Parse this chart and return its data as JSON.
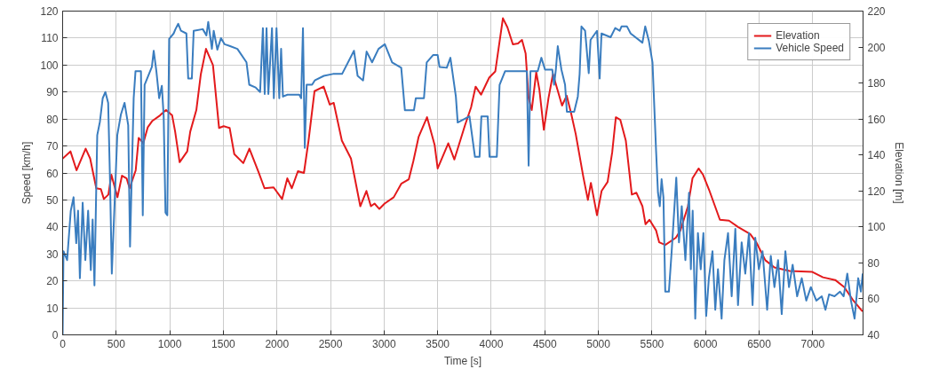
{
  "chart_data": {
    "type": "line",
    "xlabel": "Time [s]",
    "ylabel": "Speed [km/h]",
    "y2label": "Elevation [m]",
    "xlim": [
      0,
      7470
    ],
    "xticks": [
      0,
      500,
      1000,
      1500,
      2000,
      2500,
      3000,
      3500,
      4000,
      4500,
      5000,
      5500,
      6000,
      6500,
      7000
    ],
    "ylim": [
      0,
      120
    ],
    "yticks": [
      0,
      10,
      20,
      30,
      40,
      50,
      60,
      70,
      80,
      90,
      100,
      110,
      120
    ],
    "y2lim": [
      40,
      220
    ],
    "y2ticks": [
      40,
      60,
      80,
      100,
      120,
      140,
      160,
      180,
      200,
      220
    ],
    "grid": true,
    "legend": "top right",
    "line_style": "solid",
    "marker": "none",
    "series": [
      {
        "name": "Elevation",
        "color": "#e31a1c",
        "axis": "y2",
        "x": [
          0,
          73,
          130,
          215,
          257,
          314,
          357,
          385,
          427,
          455,
          512,
          554,
          597,
          625,
          682,
          710,
          753,
          795,
          838,
          909,
          965,
          1022,
          1050,
          1092,
          1163,
          1191,
          1248,
          1290,
          1338,
          1403,
          1460,
          1503,
          1559,
          1602,
          1686,
          1743,
          1828,
          1884,
          1969,
          2048,
          2097,
          2139,
          2196,
          2252,
          2295,
          2351,
          2436,
          2493,
          2530,
          2606,
          2691,
          2778,
          2835,
          2877,
          2911,
          2956,
          3005,
          3090,
          3160,
          3231,
          3273,
          3322,
          3401,
          3472,
          3500,
          3557,
          3599,
          3656,
          3755,
          3812,
          3854,
          3905,
          3981,
          4038,
          4109,
          4151,
          4202,
          4250,
          4287,
          4321,
          4349,
          4378,
          4420,
          4449,
          4491,
          4534,
          4576,
          4610,
          4661,
          4704,
          4746,
          4789,
          4859,
          4902,
          4930,
          4987,
          5030,
          5086,
          5129,
          5163,
          5205,
          5256,
          5312,
          5355,
          5411,
          5440,
          5477,
          5539,
          5567,
          5624,
          5723,
          5765,
          5836,
          5878,
          5935,
          5977,
          6034,
          6134,
          6219,
          6303,
          6417,
          6473,
          6558,
          6643,
          6785,
          6997,
          7096,
          7210,
          7295,
          7380,
          7465
        ],
        "values": [
          138,
          142,
          131.5,
          143.5,
          138,
          121.5,
          121,
          115.5,
          118,
          129,
          116.5,
          128.5,
          127,
          121.5,
          131.5,
          149.5,
          146.5,
          155.5,
          159,
          162,
          165,
          162,
          153,
          136,
          142,
          153,
          165,
          185,
          199,
          190,
          155,
          156,
          155,
          140.5,
          135.5,
          143.5,
          130.5,
          121.5,
          122,
          115.5,
          127,
          121.5,
          131,
          130,
          148,
          175.5,
          178,
          168,
          169,
          148,
          138,
          111.5,
          120,
          111.5,
          113,
          110,
          113,
          116.5,
          124,
          126.5,
          136.5,
          150,
          161,
          145.5,
          132.5,
          140.5,
          146.5,
          137.5,
          156.5,
          166.5,
          178,
          173.5,
          183,
          186.5,
          216,
          211,
          201.5,
          202,
          204,
          196.5,
          171.5,
          165,
          186,
          176.5,
          154,
          171.5,
          185,
          178,
          167.5,
          173,
          163,
          151.5,
          128,
          115,
          124.5,
          106.5,
          120,
          125,
          141.5,
          161,
          159.5,
          148,
          118,
          119,
          111.5,
          101.5,
          104,
          98,
          91.5,
          90,
          94,
          98,
          111.5,
          127,
          132.5,
          129,
          120.5,
          104,
          103.5,
          100,
          96,
          91.5,
          81.5,
          77.5,
          75.5,
          75,
          72,
          70.5,
          66.5,
          59,
          53
        ]
      },
      {
        "name": "Vehicle Speed",
        "color": "#3a7dbf",
        "x": [
          0,
          8,
          42,
          76,
          102,
          127,
          144,
          161,
          187,
          212,
          238,
          263,
          280,
          297,
          323,
          348,
          374,
          399,
          425,
          442,
          459,
          484,
          510,
          544,
          578,
          612,
          629,
          663,
          680,
          731,
          748,
          765,
          833,
          850,
          875,
          901,
          926,
          943,
          960,
          977,
          994,
          1036,
          1053,
          1079,
          1104,
          1155,
          1172,
          1206,
          1223,
          1308,
          1342,
          1359,
          1393,
          1410,
          1444,
          1478,
          1512,
          1563,
          1631,
          1716,
          1742,
          1801,
          1843,
          1869,
          1886,
          1903,
          1920,
          1954,
          1971,
          1996,
          2022,
          2039,
          2056,
          2098,
          2209,
          2226,
          2243,
          2260,
          2277,
          2328,
          2353,
          2438,
          2523,
          2608,
          2719,
          2753,
          2804,
          2837,
          2888,
          2948,
          3007,
          3075,
          3160,
          3194,
          3279,
          3296,
          3372,
          3398,
          3457,
          3500,
          3517,
          3585,
          3619,
          3670,
          3687,
          3797,
          3848,
          3891,
          3908,
          3967,
          3984,
          4052,
          4078,
          4129,
          4197,
          4256,
          4332,
          4349,
          4366,
          4434,
          4468,
          4502,
          4570,
          4587,
          4604,
          4621,
          4655,
          4689,
          4706,
          4774,
          4808,
          4825,
          4842,
          4876,
          4910,
          4927,
          4987,
          5012,
          5029,
          5114,
          5157,
          5199,
          5216,
          5267,
          5301,
          5411,
          5437,
          5471,
          5505,
          5539,
          5556,
          5573,
          5590,
          5607,
          5624,
          5658,
          5684,
          5727,
          5752,
          5778,
          5812,
          5846,
          5863,
          5880,
          5904,
          5929,
          5955,
          5980,
          6006,
          6031,
          6065,
          6091,
          6116,
          6150,
          6176,
          6210,
          6244,
          6278,
          6303,
          6337,
          6371,
          6405,
          6439,
          6464,
          6498,
          6532,
          6575,
          6609,
          6643,
          6677,
          6711,
          6745,
          6779,
          6813,
          6855,
          6898,
          6940,
          6983,
          7034,
          7085,
          7119,
          7153,
          7204,
          7255,
          7289,
          7323,
          7357,
          7391,
          7425,
          7450,
          7467
        ],
        "values": [
          0,
          31,
          27.7,
          46,
          51,
          34,
          46,
          21,
          49,
          27.7,
          46,
          24,
          42.7,
          18.3,
          74,
          79,
          87.7,
          90,
          86,
          57.7,
          22.7,
          47.7,
          74,
          81.7,
          86,
          77.7,
          32.7,
          87.7,
          97.7,
          97.7,
          44.3,
          92.7,
          99.3,
          105.3,
          97.7,
          87.7,
          92.3,
          81,
          45.3,
          44.3,
          109.7,
          111.7,
          113.3,
          115.3,
          112.7,
          111.7,
          95,
          95,
          112.7,
          113.3,
          111,
          116,
          106,
          112.7,
          105.7,
          110,
          107.7,
          107,
          106,
          101,
          92.7,
          91.7,
          90,
          113.7,
          89.3,
          113.7,
          89.3,
          113.7,
          87.7,
          113.7,
          87.7,
          106,
          88.3,
          89,
          89,
          87.7,
          113.7,
          69.3,
          92.7,
          92.7,
          94.3,
          96,
          96.7,
          96.7,
          105.3,
          96,
          94.3,
          105,
          101,
          106,
          107.7,
          101,
          99,
          83.3,
          83.3,
          87.7,
          87.7,
          101,
          103.7,
          103.7,
          99.3,
          99,
          102.7,
          88.3,
          78.7,
          81,
          66,
          66,
          81,
          81,
          66,
          66,
          92.7,
          97.7,
          97.7,
          97.7,
          97.7,
          62.7,
          97.7,
          97.7,
          102.7,
          98.3,
          98.3,
          92.7,
          98.7,
          107,
          98.3,
          92.7,
          82.7,
          82.7,
          88.3,
          96.7,
          114.3,
          112.7,
          97,
          109.3,
          112.7,
          95,
          111.7,
          110.3,
          113.7,
          112.7,
          114.3,
          114.3,
          111.7,
          108.3,
          114.3,
          109,
          101,
          67.7,
          52.7,
          47.7,
          57.7,
          51,
          16,
          16,
          31,
          58.3,
          34.3,
          47.7,
          27.7,
          52.7,
          24.3,
          46,
          6,
          37.7,
          24.3,
          37.7,
          7,
          21,
          31,
          9.3,
          24.3,
          6,
          27.7,
          37.7,
          14.3,
          39.3,
          11,
          34.3,
          22.7,
          37.7,
          11,
          36,
          24.3,
          31,
          9.3,
          29.3,
          17.7,
          27.7,
          7.7,
          31,
          17.7,
          26,
          14.3,
          21,
          12.7,
          17.7,
          12.7,
          14.3,
          9.3,
          15,
          14.3,
          16,
          14.3,
          22.7,
          12.7,
          6,
          21,
          16,
          22.7
        ]
      }
    ]
  }
}
